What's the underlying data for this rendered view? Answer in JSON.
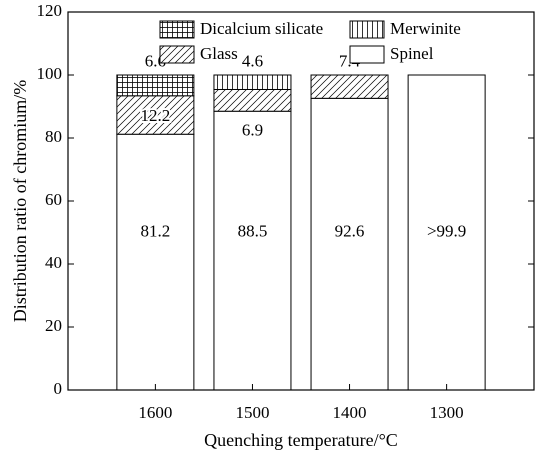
{
  "chart_data": {
    "type": "bar",
    "stacked": true,
    "title": "",
    "xlabel": "Quenching temperature/°C",
    "ylabel": "Distribution ratio of chromium/%",
    "ylim": [
      0,
      120
    ],
    "yticks": [
      "0",
      "20",
      "40",
      "60",
      "80",
      "100",
      "120"
    ],
    "categories": [
      "1600",
      "1500",
      "1400",
      "1300"
    ],
    "series": [
      {
        "name": "Spinel",
        "pattern": "blank",
        "values": [
          81.2,
          88.5,
          92.6,
          100
        ]
      },
      {
        "name": "Glass",
        "pattern": "hatch",
        "values": [
          12.2,
          6.9,
          7.4,
          0
        ]
      },
      {
        "name": "Merwinite",
        "pattern": "vertical-lines",
        "values": [
          0,
          4.6,
          0,
          0
        ]
      },
      {
        "name": "Dicalcium silicate",
        "pattern": "grid",
        "values": [
          6.6,
          0,
          0,
          0
        ]
      }
    ],
    "legend": {
      "placement": "top",
      "order": [
        "Dicalcium silicate",
        "Merwinite",
        "Glass",
        "Spinel"
      ]
    },
    "data_labels": [
      {
        "category": "1600",
        "series": "Spinel",
        "text": "81.2",
        "at": 50
      },
      {
        "category": "1500",
        "series": "Spinel",
        "text": "88.5",
        "at": 50
      },
      {
        "category": "1400",
        "series": "Spinel",
        "text": "92.6",
        "at": 50
      },
      {
        "category": "1300",
        "series": "Spinel",
        "text": ">99.9",
        "at": 50
      },
      {
        "category": "1600",
        "series": "Glass",
        "text": "12.2",
        "at": 86.6
      },
      {
        "category": "1500",
        "series": "Glass",
        "text": "6.9",
        "at": 82
      },
      {
        "category": "1400",
        "series": "Glass",
        "text": "7.4",
        "at": 104
      },
      {
        "category": "1600",
        "series": "Dicalcium silicate",
        "text": "6.6",
        "at": 104
      },
      {
        "category": "1500",
        "series": "Merwinite",
        "text": "4.6",
        "at": 104
      }
    ],
    "colors": {
      "stroke": "#000000",
      "fill": "#ffffff"
    }
  }
}
